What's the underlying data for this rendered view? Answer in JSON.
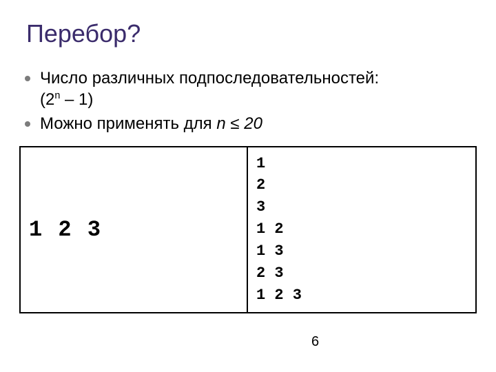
{
  "title": "Перебор?",
  "title_color": "#3b2c6c",
  "bullet_marker_color": "#7c7c7c",
  "bullets": [
    {
      "line1": "Число различных подпоследовательностей:",
      "formula_prefix": "(2",
      "formula_exp": "n",
      "formula_suffix": " – 1)"
    },
    {
      "text_prefix": "Можно применять для ",
      "italic_part": "n ≤ 20"
    }
  ],
  "table": {
    "left": "1 2 3",
    "right_rows": [
      "1",
      "2",
      "3",
      "1 2",
      "1 3",
      "2 3",
      "1 2 3"
    ]
  },
  "page_number": "6",
  "background_color": "#ffffff"
}
